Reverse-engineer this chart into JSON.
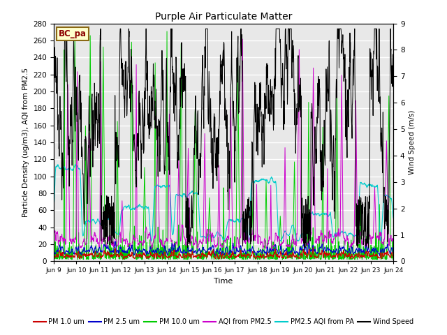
{
  "title": "Purple Air Particulate Matter",
  "ylabel_left": "Particle Density (ug/m3), AQI from PM2.5",
  "ylabel_right": "Wind Speed (m/s)",
  "xlabel": "Time",
  "ylim_left": [
    0,
    280
  ],
  "ylim_right": [
    0.0,
    9.0
  ],
  "yticks_left": [
    0,
    20,
    40,
    60,
    80,
    100,
    120,
    140,
    160,
    180,
    200,
    220,
    240,
    260,
    280
  ],
  "yticks_right": [
    0.0,
    1.0,
    2.0,
    3.0,
    4.0,
    5.0,
    6.0,
    7.0,
    8.0,
    9.0
  ],
  "xtick_labels": [
    "Jun 9",
    "Jun 10",
    "Jun 11",
    "Jun 12",
    "Jun 13",
    "Jun 14",
    "Jun 15",
    "Jun 16",
    "Jun 17",
    "Jun 18",
    "Jun 19",
    "Jun 20",
    "Jun 21",
    "Jun 22",
    "Jun 23",
    "Jun 24"
  ],
  "colors": {
    "pm1": "#cc0000",
    "pm25": "#0000cc",
    "pm10": "#00cc00",
    "aqi_pm25": "#cc00cc",
    "aqi_pa": "#00cccc",
    "wind": "#000000"
  },
  "legend_labels": [
    "PM 1.0 um",
    "PM 2.5 um",
    "PM 10.0 um",
    "AQI from PM2.5",
    "PM2.5 AQI from PA",
    "Wind Speed"
  ],
  "annotation_text": "BC_pa",
  "annotation_color": "#8b0000",
  "annotation_bg": "#ffffcc",
  "annotation_border": "#8b6914",
  "background_color": "#e8e8e8",
  "n_points": 1440
}
